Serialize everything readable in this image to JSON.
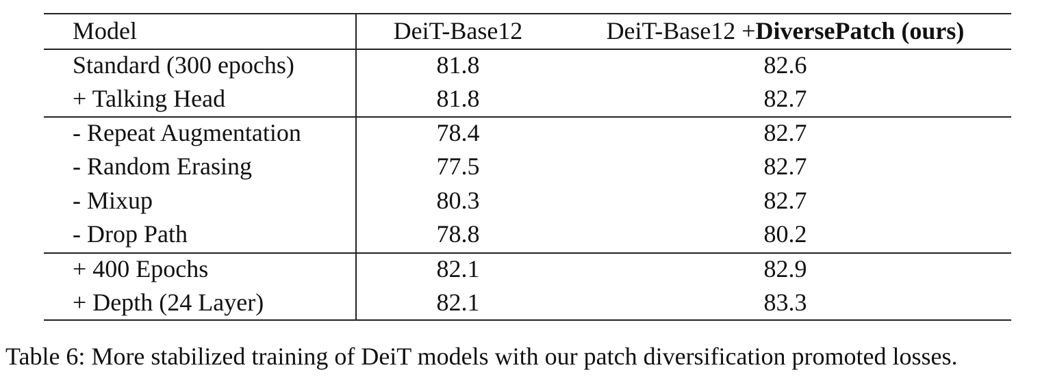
{
  "table": {
    "header": {
      "model": "Model",
      "base": "DeiT-Base12",
      "ours_prefix": "DeiT-Base12 +",
      "ours_bold": "DiversePatch (ours)"
    },
    "rows": [
      {
        "model": "Standard (300 epochs)",
        "base": "81.8",
        "ours": "82.6"
      },
      {
        "model": "+ Talking Head",
        "base": "81.8",
        "ours": "82.7"
      },
      {
        "model": "- Repeat Augmentation",
        "base": "78.4",
        "ours": "82.7"
      },
      {
        "model": "- Random Erasing",
        "base": "77.5",
        "ours": "82.7"
      },
      {
        "model": "- Mixup",
        "base": "80.3",
        "ours": "82.7"
      },
      {
        "model": "- Drop Path",
        "base": "78.8",
        "ours": "80.2"
      },
      {
        "model": "+ 400 Epochs",
        "base": "82.1",
        "ours": "82.9"
      },
      {
        "model": "+ Depth (24 Layer)",
        "base": "82.1",
        "ours": "83.3"
      }
    ]
  },
  "caption": "Table 6: More stabilized training of DeiT models with our patch diversification promoted losses."
}
